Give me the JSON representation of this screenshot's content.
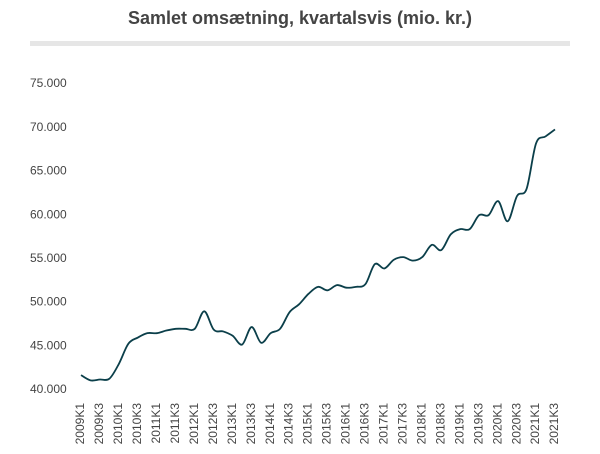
{
  "chart_data": {
    "type": "line",
    "title": "Samlet omsætning, kvartalsvis (mio. kr.)",
    "categories": [
      "2009K1",
      null,
      "2009K3",
      null,
      "2010K1",
      null,
      "2010K3",
      null,
      "2011K1",
      null,
      "2011K3",
      null,
      "2012K1",
      null,
      "2012K3",
      null,
      "2013K1",
      null,
      "2013K3",
      null,
      "2014K1",
      null,
      "2014K3",
      null,
      "2015K1",
      null,
      "2015K3",
      null,
      "2016K1",
      null,
      "2016K3",
      null,
      "2017K1",
      null,
      "2017K3",
      null,
      "2018K1",
      null,
      "2018K3",
      null,
      "2019K1",
      null,
      "2019K3",
      null,
      "2020K1",
      null,
      "2020K3",
      null,
      "2021K1",
      null,
      "2021K3"
    ],
    "values": [
      41700,
      41100,
      41200,
      41300,
      43000,
      45300,
      46000,
      46500,
      46500,
      46800,
      47000,
      47000,
      47000,
      49000,
      46900,
      46700,
      46200,
      45200,
      47200,
      45400,
      46500,
      47000,
      48900,
      49800,
      51000,
      51800,
      51400,
      52000,
      51700,
      51800,
      52100,
      54400,
      53900,
      54900,
      55200,
      54800,
      55200,
      56600,
      56000,
      57800,
      58400,
      58400,
      60000,
      60000,
      61600,
      59300,
      62200,
      63000,
      68200,
      69000,
      69800
    ],
    "color": "#0b3f4a",
    "ylim": [
      40000,
      75000
    ],
    "yticks": [
      {
        "value": 40000,
        "label": "40.000"
      },
      {
        "value": 45000,
        "label": "45.000"
      },
      {
        "value": 50000,
        "label": "50.000"
      },
      {
        "value": 55000,
        "label": "55.000"
      },
      {
        "value": 60000,
        "label": "60.000"
      },
      {
        "value": 65000,
        "label": "65.000"
      },
      {
        "value": 70000,
        "label": "70.000"
      },
      {
        "value": 75000,
        "label": "75.000"
      }
    ],
    "grid": false
  }
}
